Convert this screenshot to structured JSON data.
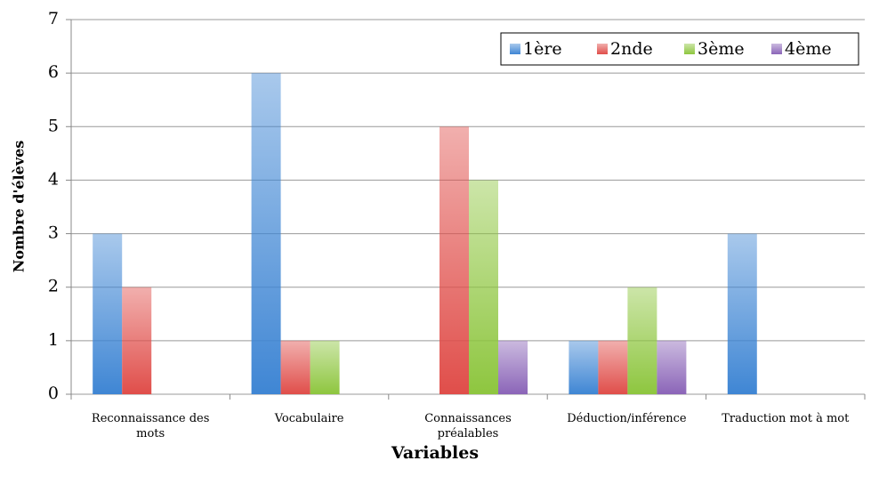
{
  "chart_data": {
    "type": "bar",
    "x_label": "Variables",
    "y_label": "Nombre d'élèves",
    "categories": [
      "Reconnaissance des mots",
      "Vocabulaire",
      "Connaissances préalables",
      "Déduction/inférence",
      "Traduction mot à mot"
    ],
    "series": [
      {
        "name": "1ère",
        "color": "#3f86d4",
        "values": [
          3,
          6,
          0,
          1,
          3
        ]
      },
      {
        "name": "2nde",
        "color": "#e04e4a",
        "values": [
          2,
          1,
          5,
          1,
          0
        ]
      },
      {
        "name": "3ème",
        "color": "#8ec63f",
        "values": [
          0,
          1,
          4,
          2,
          0
        ]
      },
      {
        "name": "4ème",
        "color": "#8b65b8",
        "values": [
          0,
          0,
          1,
          1,
          0
        ]
      }
    ],
    "ylim": [
      0,
      7
    ],
    "yticks": [
      0,
      1,
      2,
      3,
      4,
      5,
      6,
      7
    ],
    "grid": true,
    "legend": "top-right"
  }
}
